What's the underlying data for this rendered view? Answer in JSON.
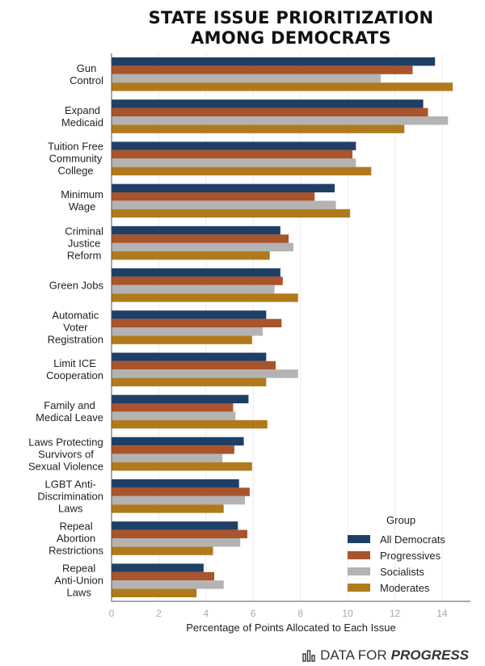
{
  "chart_data": {
    "type": "bar",
    "orientation": "horizontal",
    "title": [
      "STATE ISSUE PRIORITIZATION",
      "AMONG DEMOCRATS"
    ],
    "xlabel": "Percentage of Points Allocated to Each Issue",
    "xlim": [
      0,
      15.2
    ],
    "xticks": [
      0,
      2,
      4,
      6,
      8,
      10,
      12,
      14
    ],
    "categories": [
      [
        "Gun",
        "Control"
      ],
      [
        "Expand",
        "Medicaid"
      ],
      [
        "Tuition Free",
        "Community",
        "College"
      ],
      [
        "Minimum",
        "Wage"
      ],
      [
        "Criminal",
        "Justice",
        "Reform"
      ],
      [
        "Green Jobs"
      ],
      [
        "Automatic",
        "Voter",
        "Registration"
      ],
      [
        "Limit ICE",
        "Cooperation"
      ],
      [
        "Family and",
        "Medical Leave"
      ],
      [
        "Laws Protecting",
        "Survivors of",
        "Sexual Violence"
      ],
      [
        "LGBT Anti-",
        "Discrimination",
        "Laws"
      ],
      [
        "Repeal",
        "Abortion",
        "Restrictions"
      ],
      [
        "Repeal",
        "Anti-Union",
        "Laws"
      ]
    ],
    "series": [
      {
        "name": "All Democrats",
        "color": "#1f3f66",
        "values": [
          13.7,
          13.2,
          10.35,
          9.45,
          7.15,
          7.15,
          6.55,
          6.55,
          5.8,
          5.6,
          5.4,
          5.35,
          3.9
        ]
      },
      {
        "name": "Progressives",
        "color": "#a9542a",
        "values": [
          12.75,
          13.4,
          10.2,
          8.6,
          7.5,
          7.25,
          7.2,
          6.95,
          5.15,
          5.2,
          5.85,
          5.75,
          4.35
        ]
      },
      {
        "name": "Socialists",
        "color": "#b3b3b3",
        "values": [
          11.4,
          14.25,
          10.35,
          9.5,
          7.7,
          6.9,
          6.4,
          7.9,
          5.25,
          4.7,
          5.65,
          5.45,
          4.75
        ]
      },
      {
        "name": "Moderates",
        "color": "#b07a1c",
        "values": [
          14.45,
          12.4,
          11.0,
          10.1,
          6.7,
          7.9,
          5.95,
          6.55,
          6.6,
          5.95,
          4.75,
          4.3,
          3.6
        ]
      }
    ],
    "legend": {
      "title": "Group",
      "position": "bottom-right"
    },
    "grid": true
  },
  "branding": {
    "prefix": "DATA FOR",
    "emphasis": "PROGRESS"
  }
}
